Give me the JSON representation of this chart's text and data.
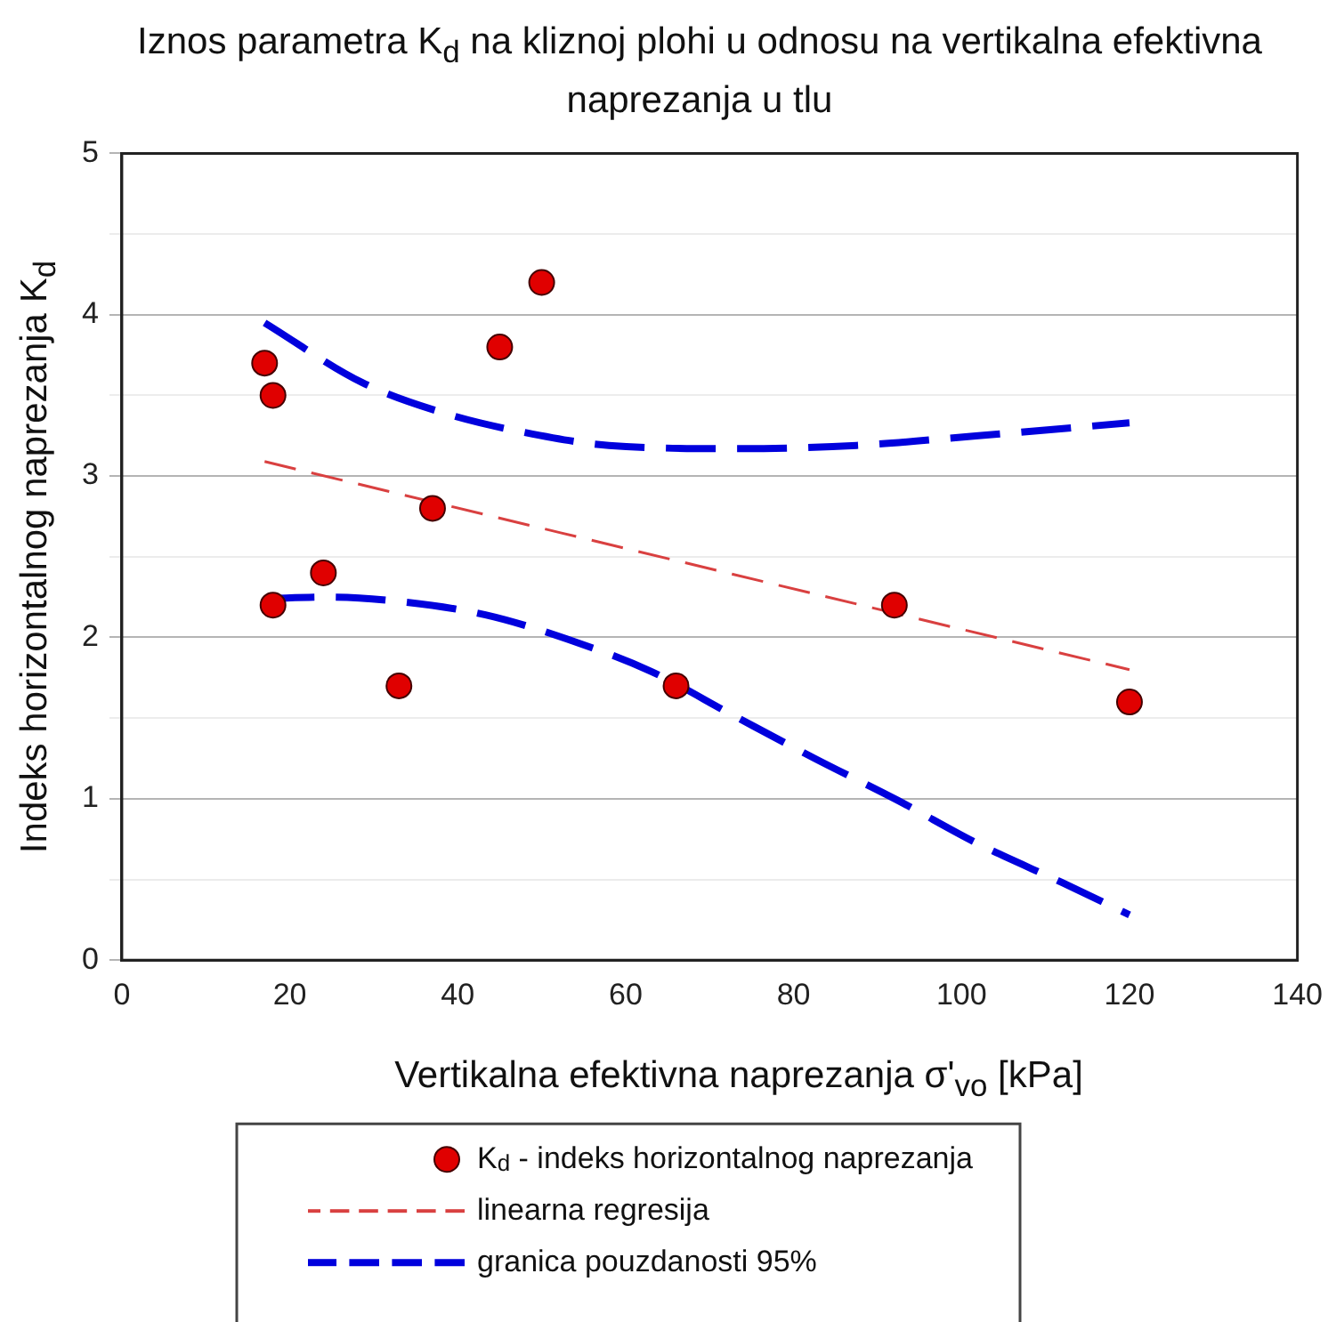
{
  "chart_data": {
    "type": "scatter",
    "title": "Iznos parametra K$_{d}$ na kliznoj plohi u odnosu na vertikalna efektivna naprezanja u tlu",
    "xlabel": "Vertikalna efektivna naprezanja σ'$_{vo}$ [kPa]",
    "ylabel": "Indeks horizontalnog naprezanja K$_{d}$",
    "xlim": [
      0,
      140
    ],
    "xticks": [
      0,
      20,
      40,
      60,
      80,
      100,
      120,
      140
    ],
    "ylim": [
      0,
      5
    ],
    "yticks": [
      0,
      {
        "value": 0.5,
        "label": null
      },
      1,
      {
        "value": 1.5,
        "label": null
      },
      2,
      {
        "value": 2.5,
        "label": null
      },
      3,
      {
        "value": 3.5,
        "label": null
      },
      4,
      {
        "value": 4.5,
        "label": null
      },
      5
    ],
    "grid": "y",
    "legend": "bottom",
    "series": [
      {
        "name": "K$_{d}$ - indeks horizontalnog naprezanja",
        "type": "scatter",
        "marker": "circle",
        "color": "#e00000",
        "x": [
          17,
          18,
          18,
          24,
          33,
          37,
          45,
          50,
          66,
          92,
          120
        ],
        "values": [
          3.7,
          3.5,
          2.2,
          2.4,
          1.7,
          2.8,
          3.8,
          4.2,
          1.7,
          2.2,
          1.6
        ]
      },
      {
        "name": "linearna regresija",
        "type": "line",
        "line_style": "dashed",
        "marker": "none",
        "color": "#d94040",
        "x": [
          17,
          120
        ],
        "values": [
          3.09,
          1.8
        ]
      },
      {
        "name": "granica pouzdanosti 95%",
        "type": "line",
        "line_style": "dashed",
        "marker": "none",
        "color": "#0000dd",
        "x": [
          17,
          28.6,
          38.4,
          48,
          58,
          73.7,
          87.5,
          102,
          120
        ],
        "values": [
          3.95,
          3.58,
          3.39,
          3.27,
          3.19,
          3.17,
          3.19,
          3.25,
          3.33
        ]
      },
      {
        "type": "line",
        "line_style": "dashed",
        "marker": "none",
        "color": "#0000dd",
        "x": [
          17,
          24.7,
          33.5,
          43.3,
          53,
          63,
          72.7,
          82.5,
          92.4,
          102,
          112,
          120
        ],
        "values": [
          2.24,
          2.25,
          2.22,
          2.14,
          1.99,
          1.79,
          1.52,
          1.25,
          0.99,
          0.72,
          0.48,
          0.28
        ]
      }
    ]
  }
}
